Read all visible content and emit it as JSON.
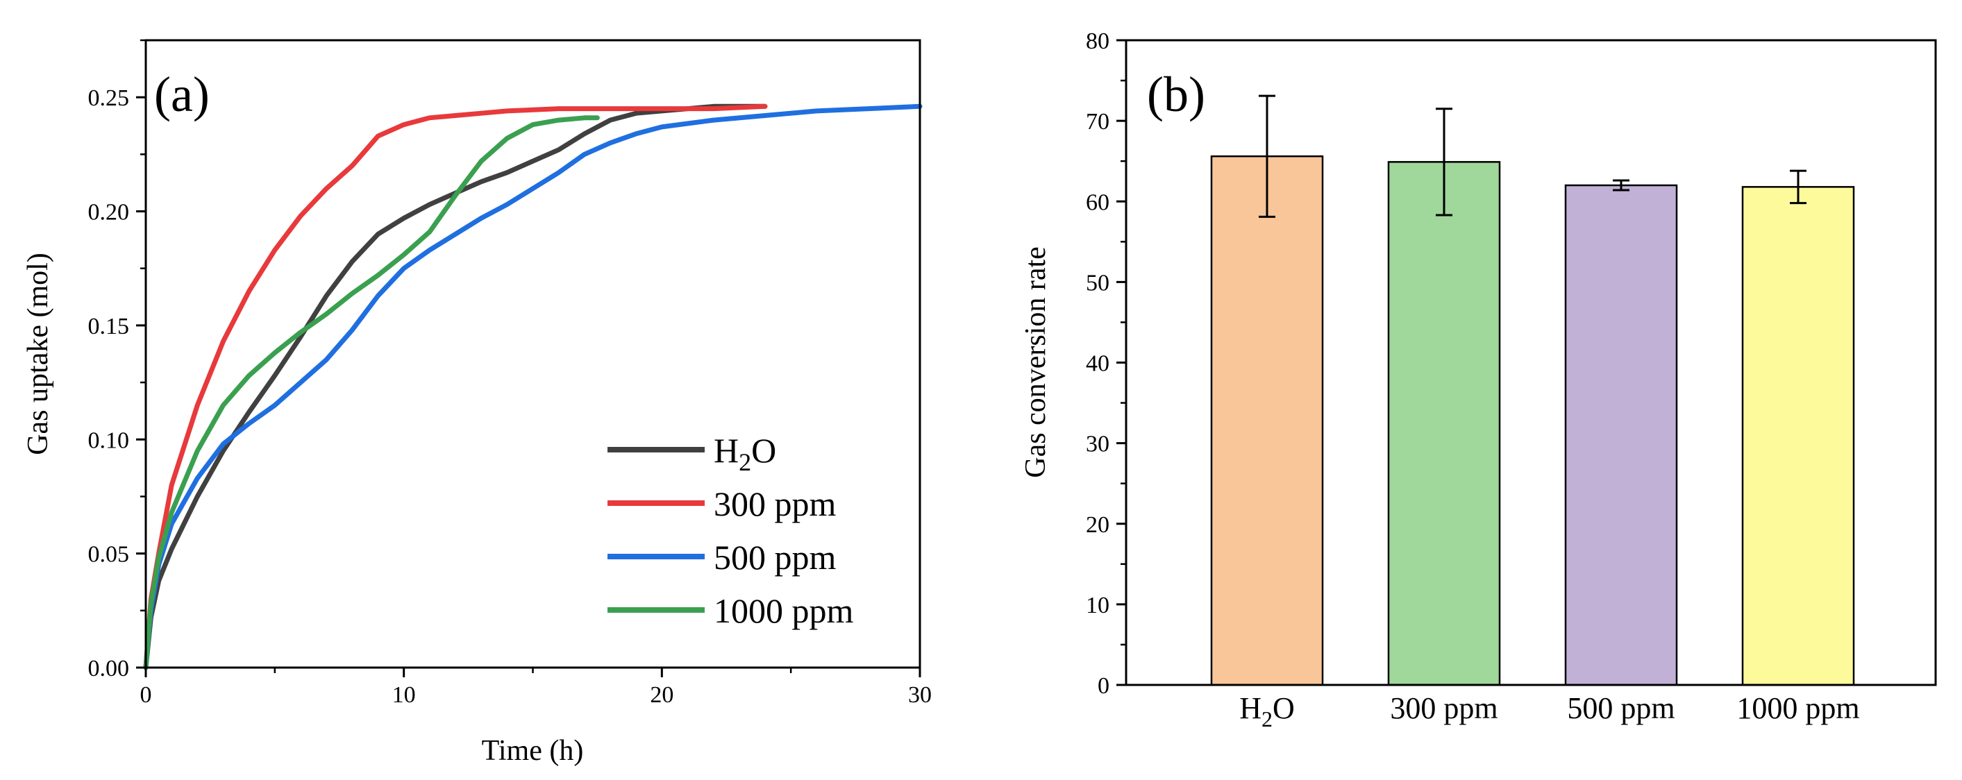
{
  "chart_data": [
    {
      "type": "line",
      "panel_label": "(a)",
      "xlabel": "Time (h)",
      "ylabel": "Gas uptake (mol)",
      "xlim": [
        0,
        30
      ],
      "ylim": [
        0,
        0.275
      ],
      "xticks": [
        0,
        10,
        20,
        30
      ],
      "xtick_labels": [
        "0",
        "10",
        "20",
        "30"
      ],
      "yticks": [
        0,
        0.05,
        0.1,
        0.15,
        0.2,
        0.25
      ],
      "ytick_labels": [
        "0.00",
        "0.05",
        "0.10",
        "0.15",
        "0.20",
        "0.25"
      ],
      "legend_position": "bottom-right",
      "series": [
        {
          "name": "H2O",
          "legend_main": "H",
          "legend_sub": "2",
          "legend_tail": "O",
          "color": "#404040",
          "x": [
            0,
            0.2,
            0.5,
            1,
            2,
            3,
            4,
            5,
            6,
            7,
            8,
            9,
            10,
            11,
            12,
            13,
            14,
            15,
            16,
            17,
            18,
            19,
            20,
            21,
            22,
            23,
            24
          ],
          "y": [
            0,
            0.022,
            0.038,
            0.052,
            0.075,
            0.095,
            0.112,
            0.128,
            0.145,
            0.163,
            0.178,
            0.19,
            0.197,
            0.203,
            0.208,
            0.213,
            0.217,
            0.222,
            0.227,
            0.234,
            0.24,
            0.243,
            0.244,
            0.245,
            0.246,
            0.246,
            0.246
          ]
        },
        {
          "name": "300 ppm",
          "legend_main": "300 ppm",
          "color": "#e8393b",
          "x": [
            0,
            0.2,
            0.5,
            1,
            2,
            3,
            4,
            5,
            6,
            7,
            8,
            9,
            10,
            11,
            12,
            13,
            14,
            16,
            18,
            20,
            22,
            24
          ],
          "y": [
            0,
            0.03,
            0.05,
            0.08,
            0.115,
            0.143,
            0.165,
            0.183,
            0.198,
            0.21,
            0.22,
            0.233,
            0.238,
            0.241,
            0.242,
            0.243,
            0.244,
            0.245,
            0.245,
            0.245,
            0.245,
            0.246
          ]
        },
        {
          "name": "500 ppm",
          "legend_main": "500 ppm",
          "color": "#1f6fe0",
          "x": [
            0,
            0.2,
            0.5,
            1,
            2,
            3,
            4,
            5,
            6,
            7,
            8,
            9,
            10,
            11,
            12,
            13,
            14,
            15,
            16,
            17,
            18,
            19,
            20,
            22,
            24,
            26,
            28,
            30
          ],
          "y": [
            0,
            0.025,
            0.045,
            0.063,
            0.083,
            0.098,
            0.107,
            0.115,
            0.125,
            0.135,
            0.148,
            0.163,
            0.175,
            0.183,
            0.19,
            0.197,
            0.203,
            0.21,
            0.217,
            0.225,
            0.23,
            0.234,
            0.237,
            0.24,
            0.242,
            0.244,
            0.245,
            0.246
          ]
        },
        {
          "name": "1000 ppm",
          "legend_main": "1000 ppm",
          "color": "#3aa050",
          "x": [
            0,
            0.2,
            0.5,
            1,
            2,
            3,
            4,
            5,
            6,
            7,
            8,
            9,
            10,
            11,
            12,
            13,
            14,
            15,
            16,
            17,
            17.5
          ],
          "y": [
            0,
            0.028,
            0.048,
            0.068,
            0.095,
            0.115,
            0.128,
            0.138,
            0.147,
            0.155,
            0.164,
            0.172,
            0.181,
            0.191,
            0.207,
            0.222,
            0.232,
            0.238,
            0.24,
            0.241,
            0.241
          ]
        }
      ]
    },
    {
      "type": "bar",
      "panel_label": "(b)",
      "xlabel": "",
      "ylabel": "Gas conversion rate",
      "ylim": [
        0,
        80
      ],
      "yticks": [
        0,
        10,
        20,
        30,
        40,
        50,
        60,
        70,
        80
      ],
      "ytick_labels": [
        "0",
        "10",
        "20",
        "30",
        "40",
        "50",
        "60",
        "70",
        "80"
      ],
      "categories": [
        "H2O",
        "300 ppm",
        "500 ppm",
        "1000 ppm"
      ],
      "category_labels": [
        {
          "main": "H",
          "sub": "2",
          "tail": "O"
        },
        {
          "main": "300 ppm"
        },
        {
          "main": "500 ppm"
        },
        {
          "main": "1000 ppm"
        }
      ],
      "values": [
        65.6,
        64.9,
        62.0,
        61.8
      ],
      "errors": [
        7.5,
        6.6,
        0.6,
        2.0
      ],
      "colors": [
        "#f9c699",
        "#a0d79a",
        "#c1b1d6",
        "#fdfa9c"
      ]
    }
  ]
}
